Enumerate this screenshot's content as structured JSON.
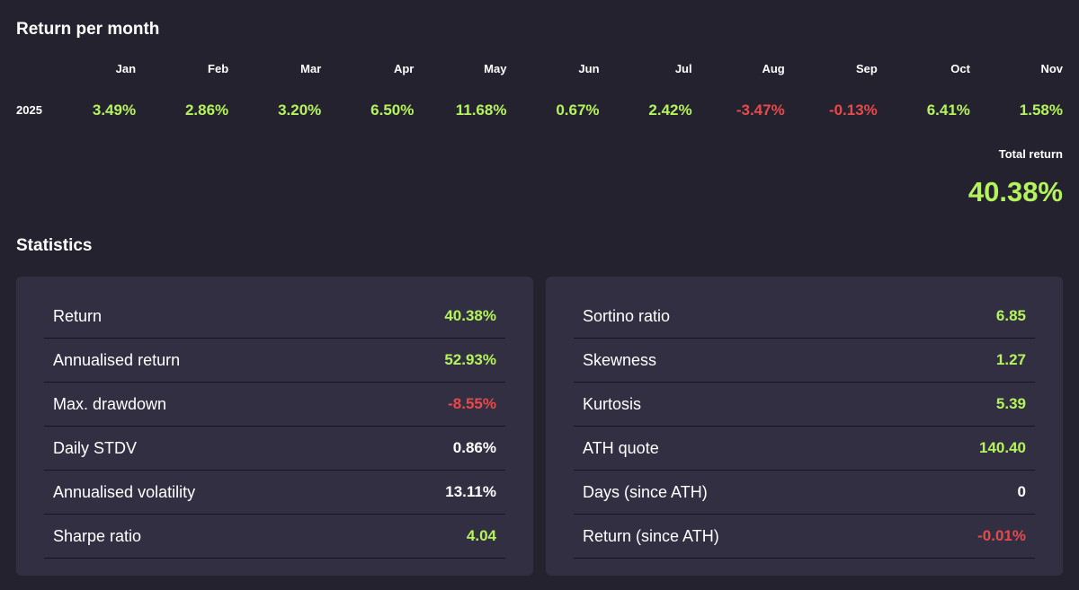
{
  "return_per_month": {
    "title": "Return per month",
    "months": [
      "Jan",
      "Feb",
      "Mar",
      "Apr",
      "May",
      "Jun",
      "Jul",
      "Aug",
      "Sep",
      "Oct",
      "Nov"
    ],
    "rows": [
      {
        "year": "2025",
        "values": [
          "3.49%",
          "2.86%",
          "3.20%",
          "6.50%",
          "11.68%",
          "0.67%",
          "2.42%",
          "-3.47%",
          "-0.13%",
          "6.41%",
          "1.58%"
        ],
        "signs": [
          "pos",
          "pos",
          "pos",
          "pos",
          "pos",
          "pos",
          "pos",
          "neg",
          "neg",
          "pos",
          "pos"
        ]
      }
    ],
    "total_label": "Total return",
    "total_value": "40.38%"
  },
  "statistics": {
    "title": "Statistics",
    "left": [
      {
        "label": "Return",
        "value": "40.38%",
        "sign": "pos"
      },
      {
        "label": "Annualised return",
        "value": "52.93%",
        "sign": "pos"
      },
      {
        "label": "Max. drawdown",
        "value": "-8.55%",
        "sign": "neg"
      },
      {
        "label": "Daily STDV",
        "value": "0.86%",
        "sign": "neu"
      },
      {
        "label": "Annualised volatility",
        "value": "13.11%",
        "sign": "neu"
      },
      {
        "label": "Sharpe ratio",
        "value": "4.04",
        "sign": "pos"
      }
    ],
    "right": [
      {
        "label": "Sortino ratio",
        "value": "6.85",
        "sign": "pos"
      },
      {
        "label": "Skewness",
        "value": "1.27",
        "sign": "pos"
      },
      {
        "label": "Kurtosis",
        "value": "5.39",
        "sign": "pos"
      },
      {
        "label": "ATH quote",
        "value": "140.40",
        "sign": "pos"
      },
      {
        "label": "Days (since ATH)",
        "value": "0",
        "sign": "neu"
      },
      {
        "label": "Return (since ATH)",
        "value": "-0.01%",
        "sign": "neg"
      }
    ]
  },
  "colors": {
    "background": "#25222f",
    "panel": "#322f42",
    "positive": "#b5f35c",
    "negative": "#e8494b",
    "neutral": "#ffffff"
  }
}
